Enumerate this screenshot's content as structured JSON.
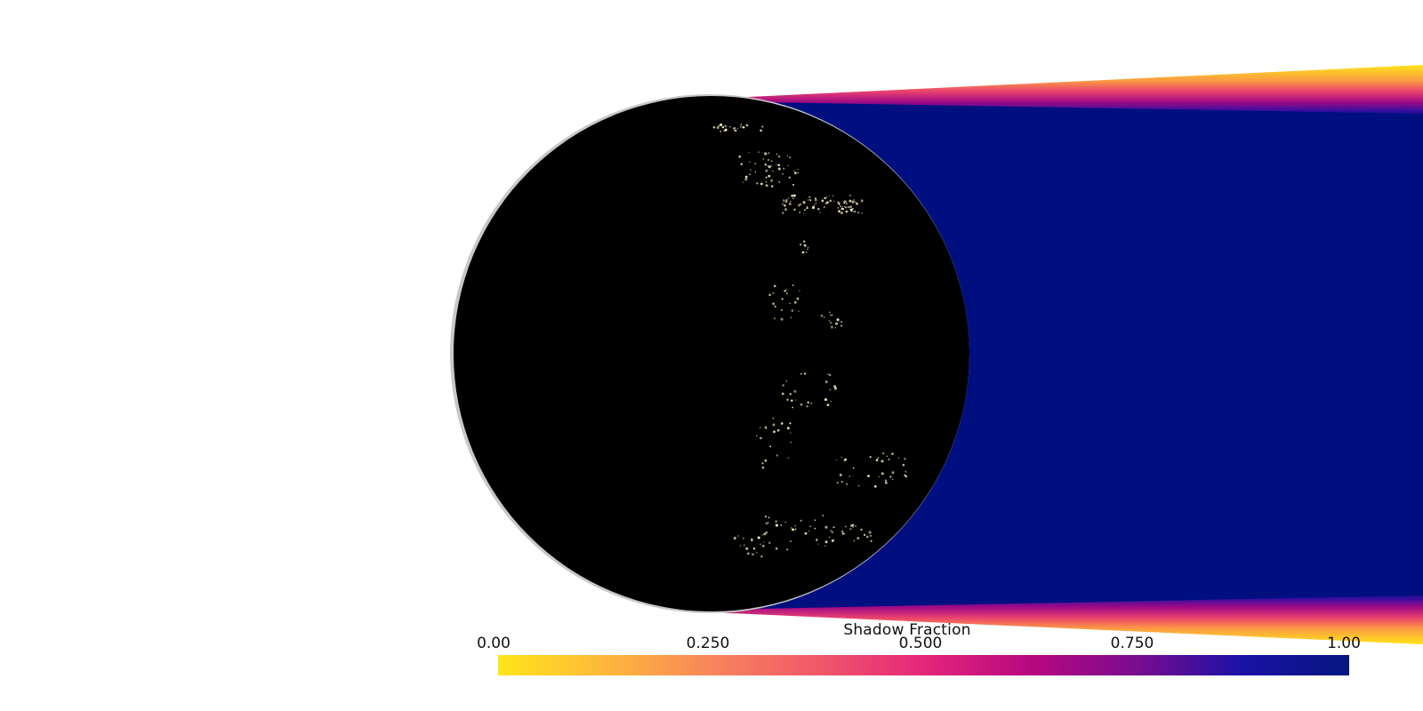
{
  "colorbar": {
    "title": "Shadow Fraction",
    "ticks": [
      "0.00",
      "0.250",
      "0.500",
      "0.750",
      "1.00"
    ],
    "tick_values": [
      0.0,
      0.25,
      0.5,
      0.75,
      1.0
    ],
    "colormap": [
      "#ffe51a",
      "#fdb03f",
      "#f8795a",
      "#e9416f",
      "#c5087a",
      "#8a0a8c",
      "#3a0ea0",
      "#0714a8",
      "#061680"
    ]
  },
  "colors": {
    "background": "#ffffff",
    "shadow_core": "#000f80",
    "earth_night": "#000000",
    "city_lights": "#f4ecc0"
  }
}
